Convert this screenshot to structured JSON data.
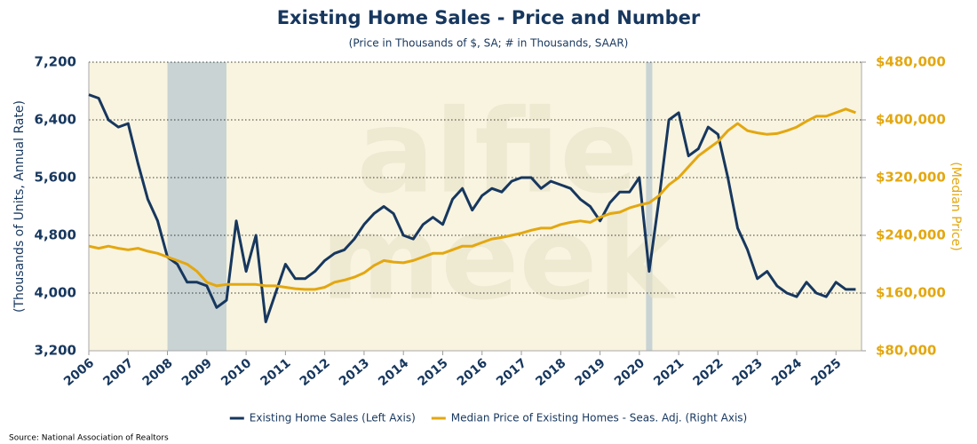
{
  "chart_data": {
    "type": "line",
    "title": "Existing Home Sales - Price and Number",
    "subtitle": "(Price in Thousands of $, SA; # in Thousands, SAAR)",
    "ylabel": "(Thousands of Units, Annual Rate)",
    "y2label": "(Median Price)",
    "source": "Source: National Association of Realtors",
    "watermark": [
      "alfie",
      "meek"
    ],
    "grid": true,
    "legend": "bottom",
    "xlim": [
      2006,
      2025.65
    ],
    "xticks": [
      2006,
      2007,
      2008,
      2009,
      2010,
      2011,
      2012,
      2013,
      2014,
      2015,
      2016,
      2017,
      2018,
      2019,
      2020,
      2021,
      2022,
      2023,
      2024,
      2025
    ],
    "ylim": [
      3200,
      7200
    ],
    "yticks": [
      {
        "value": 3200,
        "label": "3,200"
      },
      {
        "value": 4000,
        "label": "4,000"
      },
      {
        "value": 4800,
        "label": "4,800"
      },
      {
        "value": 5600,
        "label": "5,600"
      },
      {
        "value": 6400,
        "label": "6,400"
      },
      {
        "value": 7200,
        "label": "7,200"
      }
    ],
    "y2lim": [
      80000,
      480000
    ],
    "y2ticks": [
      {
        "value": 80000,
        "label": "$80,000"
      },
      {
        "value": 160000,
        "label": "$160,000"
      },
      {
        "value": 240000,
        "label": "$240,000"
      },
      {
        "value": 320000,
        "label": "$320,000"
      },
      {
        "value": 400000,
        "label": "$400,000"
      },
      {
        "value": 480000,
        "label": "$480,000"
      }
    ],
    "shading": {
      "color": "#c9d3d3",
      "spans": [
        [
          2008.0,
          2009.5
        ],
        [
          2020.17,
          2020.33
        ]
      ]
    },
    "x": [
      2006,
      2006.25,
      2006.5,
      2006.75,
      2007,
      2007.25,
      2007.5,
      2007.75,
      2008,
      2008.25,
      2008.5,
      2008.75,
      2009,
      2009.25,
      2009.5,
      2009.75,
      2010,
      2010.25,
      2010.5,
      2010.75,
      2011,
      2011.25,
      2011.5,
      2011.75,
      2012,
      2012.25,
      2012.5,
      2012.75,
      2013,
      2013.25,
      2013.5,
      2013.75,
      2014,
      2014.25,
      2014.5,
      2014.75,
      2015,
      2015.25,
      2015.5,
      2015.75,
      2016,
      2016.25,
      2016.5,
      2016.75,
      2017,
      2017.25,
      2017.5,
      2017.75,
      2018,
      2018.25,
      2018.5,
      2018.75,
      2019,
      2019.25,
      2019.5,
      2019.75,
      2020,
      2020.25,
      2020.5,
      2020.75,
      2021,
      2021.25,
      2021.5,
      2021.75,
      2022,
      2022.25,
      2022.5,
      2022.75,
      2023,
      2023.25,
      2023.5,
      2023.75,
      2024,
      2024.25,
      2024.5,
      2024.75,
      2025,
      2025.25,
      2025.5
    ],
    "series": [
      {
        "name": "Existing Home Sales (Left Axis)",
        "color": "#17375e",
        "values": [
          6750,
          6700,
          6400,
          6300,
          6350,
          5800,
          5300,
          5000,
          4500,
          4400,
          4150,
          4150,
          4100,
          3800,
          3900,
          5000,
          4300,
          4800,
          3600,
          4000,
          4400,
          4200,
          4200,
          4300,
          4450,
          4550,
          4600,
          4750,
          4950,
          5100,
          5200,
          5100,
          4800,
          4750,
          4950,
          5050,
          4950,
          5300,
          5450,
          5150,
          5350,
          5450,
          5400,
          5550,
          5600,
          5600,
          5450,
          5550,
          5500,
          5450,
          5300,
          5200,
          5000,
          5250,
          5400,
          5400,
          5600,
          4300,
          5300,
          6400,
          6500,
          5900,
          6000,
          6300,
          6200,
          5600,
          4900,
          4600,
          4200,
          4300,
          4100,
          4000,
          3950,
          4150,
          4000,
          3950,
          4150,
          4050,
          4050
        ]
      },
      {
        "name": "Median Price of Existing Homes - Seas. Adj. (Right Axis)",
        "color": "#e3a710",
        "axis": "y2",
        "values": [
          225000,
          222000,
          225000,
          222000,
          220000,
          222000,
          218000,
          215000,
          210000,
          205000,
          200000,
          190000,
          175000,
          170000,
          172000,
          172000,
          172000,
          172000,
          170000,
          170000,
          168000,
          166000,
          165000,
          165000,
          168000,
          175000,
          178000,
          182000,
          188000,
          198000,
          205000,
          203000,
          202000,
          205000,
          210000,
          215000,
          215000,
          220000,
          225000,
          225000,
          230000,
          235000,
          237000,
          240000,
          243000,
          247000,
          250000,
          250000,
          255000,
          258000,
          260000,
          258000,
          265000,
          270000,
          272000,
          278000,
          282000,
          285000,
          295000,
          310000,
          320000,
          335000,
          350000,
          360000,
          370000,
          385000,
          395000,
          385000,
          382000,
          380000,
          381000,
          385000,
          390000,
          398000,
          405000,
          405000,
          410000,
          415000,
          410000
        ]
      }
    ]
  }
}
